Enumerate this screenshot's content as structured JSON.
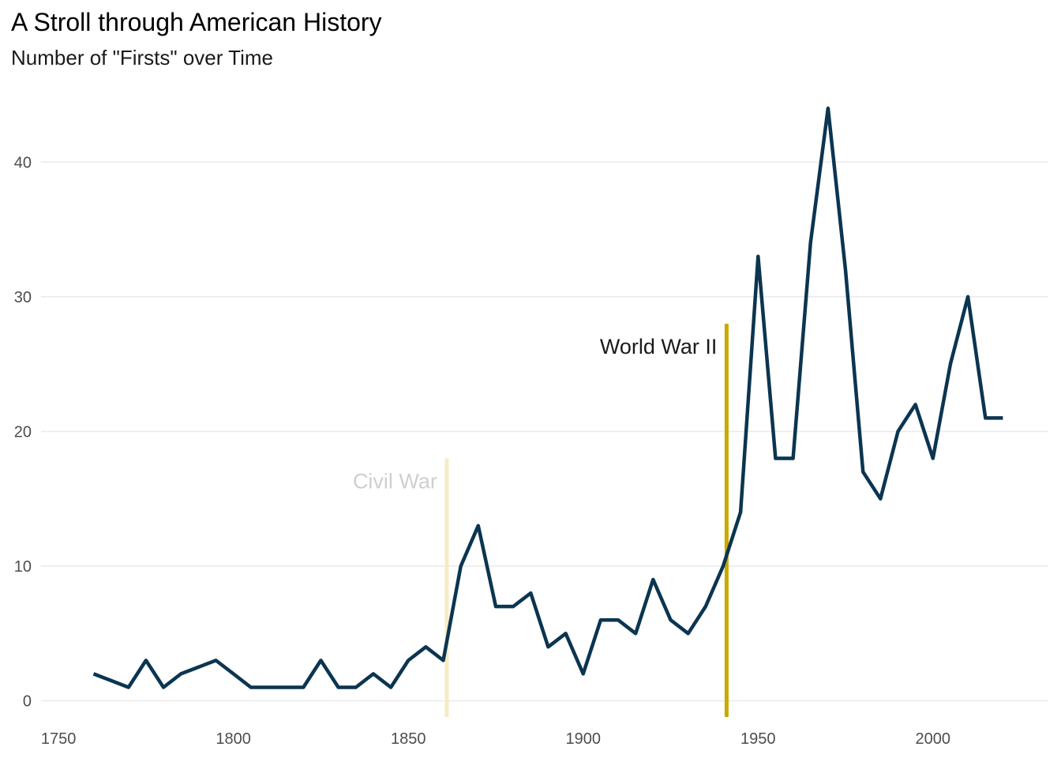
{
  "chart_data": {
    "type": "line",
    "title": "A Stroll through American History",
    "subtitle": "Number of \"Firsts\" over Time",
    "xlabel": "",
    "ylabel": "",
    "xlim": [
      1745,
      2033
    ],
    "ylim": [
      -1.2,
      45
    ],
    "xticks": [
      1750,
      1800,
      1850,
      1900,
      1950,
      2000
    ],
    "yticks": [
      0,
      10,
      20,
      30,
      40
    ],
    "grid": true,
    "line_color": "#0b3550",
    "series": [
      {
        "x": [
          1760,
          1765,
          1770,
          1775,
          1780,
          1785,
          1790,
          1795,
          1800,
          1805,
          1810,
          1815,
          1820,
          1825,
          1830,
          1835,
          1840,
          1845,
          1850,
          1855,
          1860,
          1865,
          1870,
          1875,
          1880,
          1885,
          1890,
          1895,
          1900,
          1905,
          1910,
          1915,
          1920,
          1925,
          1930,
          1935,
          1940,
          1945,
          1950,
          1955,
          1960,
          1965,
          1970,
          1975,
          1980,
          1985,
          1990,
          1995,
          2000,
          2005,
          2010,
          2015,
          2020
        ],
        "values": [
          2,
          1.5,
          1,
          3,
          1,
          2,
          2.5,
          3,
          2,
          1,
          1,
          1,
          1,
          3,
          1,
          1,
          2,
          1,
          3,
          4,
          3,
          10,
          13,
          7,
          7,
          8,
          4,
          5,
          2,
          6,
          6,
          5,
          9,
          6,
          5,
          7,
          10,
          14,
          33,
          18,
          18,
          34,
          44,
          32,
          17,
          15,
          20,
          22,
          18,
          25,
          30,
          21,
          21
        ]
      }
    ],
    "annotations": [
      {
        "label": "Civil War",
        "x": 1861,
        "y_top": 18,
        "line_color": "#f7ebc3",
        "text_color": "#cfcfcf"
      },
      {
        "label": "World War II",
        "x": 1941,
        "y_top": 28,
        "line_color": "#c9a800",
        "text_color": "#1a1a1a"
      }
    ]
  }
}
